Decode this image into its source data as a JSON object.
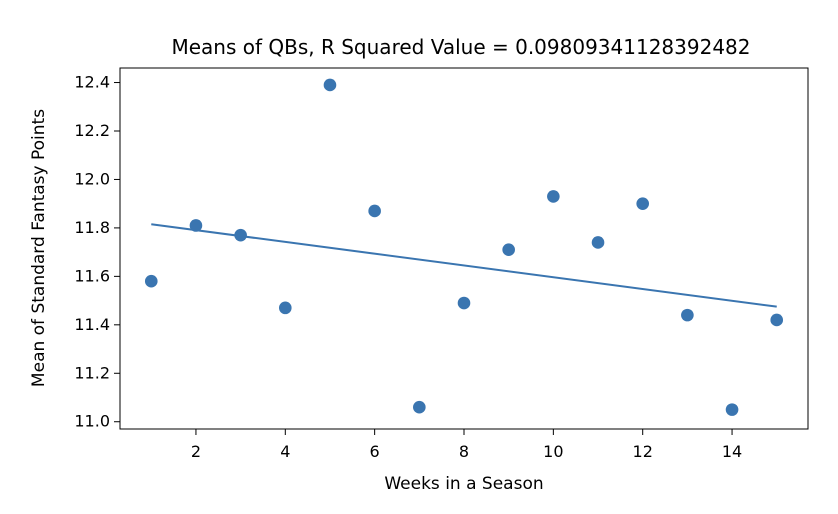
{
  "chart_data": {
    "type": "scatter",
    "title": "Means of QBs, R Squared Value = 0.09809341128392482",
    "xlabel": "Weeks in a Season",
    "ylabel": "Mean of Standard Fantasy Points",
    "xlim": [
      0.3,
      15.7
    ],
    "ylim": [
      10.97,
      12.46
    ],
    "x_ticks": [
      2,
      4,
      6,
      8,
      10,
      12,
      14
    ],
    "x_tick_labels": [
      "2",
      "4",
      "6",
      "8",
      "10",
      "12",
      "14"
    ],
    "y_ticks": [
      11.0,
      11.2,
      11.4,
      11.6,
      11.8,
      12.0,
      12.2,
      12.4
    ],
    "y_tick_labels": [
      "11.0",
      "11.2",
      "11.4",
      "11.6",
      "11.8",
      "12.0",
      "12.2",
      "12.4"
    ],
    "grid": false,
    "legend": "none",
    "series": [
      {
        "kind": "scatter",
        "color": "#3a75b0",
        "points": [
          {
            "x": 1,
            "y": 11.58
          },
          {
            "x": 2,
            "y": 11.81
          },
          {
            "x": 3,
            "y": 11.77
          },
          {
            "x": 4,
            "y": 11.47
          },
          {
            "x": 5,
            "y": 12.39
          },
          {
            "x": 6,
            "y": 11.87
          },
          {
            "x": 7,
            "y": 11.06
          },
          {
            "x": 8,
            "y": 11.49
          },
          {
            "x": 9,
            "y": 11.71
          },
          {
            "x": 10,
            "y": 11.93
          },
          {
            "x": 11,
            "y": 11.74
          },
          {
            "x": 12,
            "y": 11.9
          },
          {
            "x": 13,
            "y": 11.44
          },
          {
            "x": 14,
            "y": 11.05
          },
          {
            "x": 15,
            "y": 11.42
          }
        ]
      },
      {
        "kind": "line",
        "color": "#3a75b0",
        "points": [
          {
            "x": 1,
            "y": 11.815
          },
          {
            "x": 15,
            "y": 11.475
          }
        ]
      }
    ]
  }
}
